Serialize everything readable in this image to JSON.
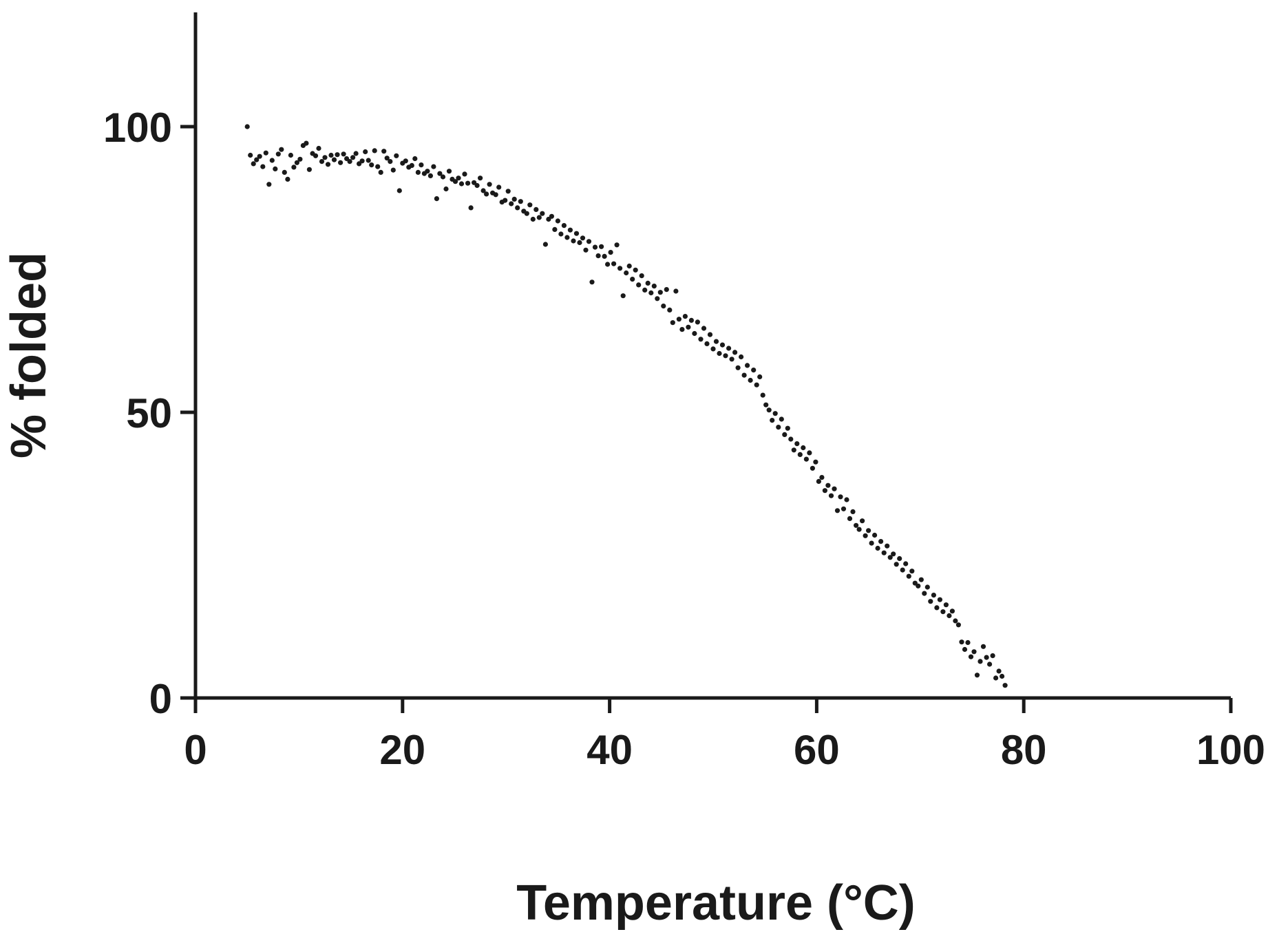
{
  "chart_data": {
    "type": "scatter",
    "xlabel": "Temperature (°C)",
    "ylabel": "% folded",
    "xlim": [
      0,
      100
    ],
    "ylim": [
      0,
      120
    ],
    "xticks": [
      "0",
      "20",
      "40",
      "60",
      "80",
      "100"
    ],
    "yticks": [
      "0",
      "50",
      "100"
    ],
    "grid": false,
    "legend": "none",
    "marker_color": "#1a1a1a",
    "series": [
      {
        "points": [
          [
            5.0,
            100.0
          ],
          [
            5.3,
            95.0
          ],
          [
            5.6,
            93.5
          ],
          [
            5.9,
            94.2
          ],
          [
            6.2,
            94.8
          ],
          [
            6.5,
            93.0
          ],
          [
            6.8,
            95.4
          ],
          [
            7.1,
            89.9
          ],
          [
            7.4,
            94.1
          ],
          [
            7.7,
            92.6
          ],
          [
            8.0,
            95.2
          ],
          [
            8.3,
            96.0
          ],
          [
            8.6,
            92.0
          ],
          [
            8.9,
            90.8
          ],
          [
            9.2,
            95.0
          ],
          [
            9.5,
            92.9
          ],
          [
            9.8,
            93.7
          ],
          [
            10.1,
            94.3
          ],
          [
            10.4,
            96.7
          ],
          [
            10.7,
            97.1
          ],
          [
            11.0,
            92.5
          ],
          [
            11.3,
            95.3
          ],
          [
            11.6,
            94.9
          ],
          [
            11.9,
            96.2
          ],
          [
            12.2,
            93.9
          ],
          [
            12.5,
            94.6
          ],
          [
            12.8,
            93.4
          ],
          [
            13.1,
            95.0
          ],
          [
            13.4,
            94.2
          ],
          [
            13.7,
            95.1
          ],
          [
            14.0,
            93.7
          ],
          [
            14.3,
            95.2
          ],
          [
            14.6,
            94.4
          ],
          [
            14.9,
            93.9
          ],
          [
            15.2,
            94.6
          ],
          [
            15.5,
            95.3
          ],
          [
            15.8,
            93.5
          ],
          [
            16.1,
            94.0
          ],
          [
            16.4,
            95.6
          ],
          [
            16.7,
            94.1
          ],
          [
            17.0,
            93.3
          ],
          [
            17.3,
            95.8
          ],
          [
            17.6,
            93.0
          ],
          [
            17.9,
            92.0
          ],
          [
            18.2,
            95.7
          ],
          [
            18.5,
            94.5
          ],
          [
            18.8,
            93.9
          ],
          [
            19.1,
            92.4
          ],
          [
            19.4,
            94.9
          ],
          [
            19.7,
            88.8
          ],
          [
            20.0,
            93.6
          ],
          [
            20.3,
            94.0
          ],
          [
            20.6,
            92.9
          ],
          [
            20.9,
            93.2
          ],
          [
            21.2,
            94.4
          ],
          [
            21.5,
            92.0
          ],
          [
            21.8,
            93.3
          ],
          [
            22.1,
            91.8
          ],
          [
            22.4,
            92.2
          ],
          [
            22.7,
            91.4
          ],
          [
            23.0,
            93.0
          ],
          [
            23.3,
            87.4
          ],
          [
            23.6,
            91.8
          ],
          [
            23.9,
            91.2
          ],
          [
            24.2,
            89.1
          ],
          [
            24.5,
            92.2
          ],
          [
            24.8,
            90.8
          ],
          [
            25.1,
            90.4
          ],
          [
            25.4,
            91.0
          ],
          [
            25.7,
            90.0
          ],
          [
            26.0,
            91.7
          ],
          [
            26.3,
            90.1
          ],
          [
            26.6,
            85.8
          ],
          [
            26.9,
            90.2
          ],
          [
            27.2,
            89.7
          ],
          [
            27.5,
            91.0
          ],
          [
            27.8,
            88.8
          ],
          [
            28.1,
            88.2
          ],
          [
            28.4,
            89.9
          ],
          [
            28.7,
            88.4
          ],
          [
            29.0,
            88.1
          ],
          [
            29.3,
            89.4
          ],
          [
            29.6,
            86.8
          ],
          [
            29.9,
            87.1
          ],
          [
            30.2,
            88.7
          ],
          [
            30.5,
            86.5
          ],
          [
            30.8,
            87.3
          ],
          [
            31.1,
            85.8
          ],
          [
            31.4,
            86.9
          ],
          [
            31.7,
            85.2
          ],
          [
            32.0,
            84.8
          ],
          [
            32.3,
            86.3
          ],
          [
            32.6,
            83.8
          ],
          [
            32.9,
            85.5
          ],
          [
            33.2,
            84.1
          ],
          [
            33.5,
            84.8
          ],
          [
            33.8,
            79.4
          ],
          [
            34.1,
            83.8
          ],
          [
            34.4,
            84.3
          ],
          [
            34.7,
            82.0
          ],
          [
            35.0,
            83.5
          ],
          [
            35.3,
            81.2
          ],
          [
            35.6,
            82.7
          ],
          [
            35.9,
            80.6
          ],
          [
            36.2,
            81.9
          ],
          [
            36.5,
            80.0
          ],
          [
            36.8,
            81.3
          ],
          [
            37.1,
            79.7
          ],
          [
            37.4,
            80.5
          ],
          [
            37.7,
            78.4
          ],
          [
            38.0,
            79.9
          ],
          [
            38.3,
            72.8
          ],
          [
            38.6,
            78.9
          ],
          [
            38.9,
            77.4
          ],
          [
            39.2,
            79.0
          ],
          [
            39.5,
            77.3
          ],
          [
            39.8,
            75.9
          ],
          [
            40.1,
            78.0
          ],
          [
            40.4,
            76.0
          ],
          [
            40.7,
            79.3
          ],
          [
            41.0,
            75.2
          ],
          [
            41.3,
            70.4
          ],
          [
            41.6,
            74.4
          ],
          [
            41.9,
            75.6
          ],
          [
            42.2,
            73.3
          ],
          [
            42.5,
            74.9
          ],
          [
            42.8,
            72.3
          ],
          [
            43.1,
            73.9
          ],
          [
            43.4,
            71.4
          ],
          [
            43.7,
            72.6
          ],
          [
            44.0,
            70.9
          ],
          [
            44.3,
            72.1
          ],
          [
            44.6,
            69.9
          ],
          [
            44.9,
            71.0
          ],
          [
            45.2,
            68.6
          ],
          [
            45.5,
            71.5
          ],
          [
            45.8,
            67.9
          ],
          [
            46.1,
            65.7
          ],
          [
            46.4,
            71.2
          ],
          [
            46.7,
            66.3
          ],
          [
            47.0,
            64.5
          ],
          [
            47.3,
            66.8
          ],
          [
            47.6,
            64.9
          ],
          [
            47.9,
            66.1
          ],
          [
            48.2,
            63.8
          ],
          [
            48.5,
            65.8
          ],
          [
            48.8,
            62.8
          ],
          [
            49.1,
            64.7
          ],
          [
            49.4,
            62.0
          ],
          [
            49.7,
            63.6
          ],
          [
            50.0,
            61.1
          ],
          [
            50.3,
            62.4
          ],
          [
            50.6,
            60.3
          ],
          [
            50.9,
            61.8
          ],
          [
            51.2,
            59.9
          ],
          [
            51.5,
            61.2
          ],
          [
            51.8,
            59.3
          ],
          [
            52.1,
            60.5
          ],
          [
            52.4,
            57.8
          ],
          [
            52.7,
            59.7
          ],
          [
            53.0,
            56.5
          ],
          [
            53.3,
            58.2
          ],
          [
            53.6,
            55.6
          ],
          [
            53.9,
            57.4
          ],
          [
            54.2,
            54.8
          ],
          [
            54.5,
            56.2
          ],
          [
            54.8,
            53.0
          ],
          [
            55.1,
            51.3
          ],
          [
            55.4,
            50.4
          ],
          [
            55.7,
            48.6
          ],
          [
            56.0,
            49.8
          ],
          [
            56.3,
            47.4
          ],
          [
            56.6,
            48.8
          ],
          [
            56.9,
            46.1
          ],
          [
            57.2,
            47.2
          ],
          [
            57.5,
            45.3
          ],
          [
            57.8,
            43.4
          ],
          [
            58.1,
            44.5
          ],
          [
            58.4,
            42.6
          ],
          [
            58.7,
            43.8
          ],
          [
            59.0,
            41.8
          ],
          [
            59.3,
            42.9
          ],
          [
            59.6,
            40.2
          ],
          [
            59.9,
            41.3
          ],
          [
            60.2,
            37.9
          ],
          [
            60.5,
            38.6
          ],
          [
            60.8,
            36.3
          ],
          [
            61.1,
            37.2
          ],
          [
            61.4,
            35.4
          ],
          [
            61.7,
            36.6
          ],
          [
            62.0,
            32.8
          ],
          [
            62.3,
            35.2
          ],
          [
            62.6,
            33.1
          ],
          [
            62.9,
            34.7
          ],
          [
            63.2,
            31.4
          ],
          [
            63.5,
            32.6
          ],
          [
            63.8,
            30.2
          ],
          [
            64.1,
            29.5
          ],
          [
            64.4,
            31.0
          ],
          [
            64.7,
            28.4
          ],
          [
            65.0,
            29.3
          ],
          [
            65.3,
            27.1
          ],
          [
            65.6,
            28.5
          ],
          [
            65.9,
            26.2
          ],
          [
            66.2,
            27.4
          ],
          [
            66.5,
            25.4
          ],
          [
            66.8,
            26.6
          ],
          [
            67.1,
            24.6
          ],
          [
            67.4,
            25.2
          ],
          [
            67.7,
            23.4
          ],
          [
            68.0,
            24.4
          ],
          [
            68.3,
            22.4
          ],
          [
            68.6,
            23.5
          ],
          [
            68.9,
            21.3
          ],
          [
            69.2,
            22.2
          ],
          [
            69.5,
            20.1
          ],
          [
            69.8,
            19.6
          ],
          [
            70.1,
            20.7
          ],
          [
            70.4,
            18.3
          ],
          [
            70.7,
            19.4
          ],
          [
            71.0,
            16.9
          ],
          [
            71.3,
            18.0
          ],
          [
            71.6,
            15.8
          ],
          [
            71.9,
            17.2
          ],
          [
            72.2,
            15.1
          ],
          [
            72.5,
            16.3
          ],
          [
            72.8,
            14.4
          ],
          [
            73.1,
            15.2
          ],
          [
            73.4,
            13.5
          ],
          [
            73.7,
            12.8
          ],
          [
            74.0,
            9.8
          ],
          [
            74.3,
            8.5
          ],
          [
            74.6,
            9.7
          ],
          [
            74.9,
            7.2
          ],
          [
            75.2,
            8.1
          ],
          [
            75.5,
            4.0
          ],
          [
            75.8,
            6.4
          ],
          [
            76.1,
            9.0
          ],
          [
            76.4,
            7.1
          ],
          [
            76.7,
            5.9
          ],
          [
            77.0,
            7.4
          ],
          [
            77.3,
            3.5
          ],
          [
            77.6,
            4.7
          ],
          [
            77.9,
            3.8
          ],
          [
            78.2,
            2.2
          ]
        ]
      }
    ]
  }
}
